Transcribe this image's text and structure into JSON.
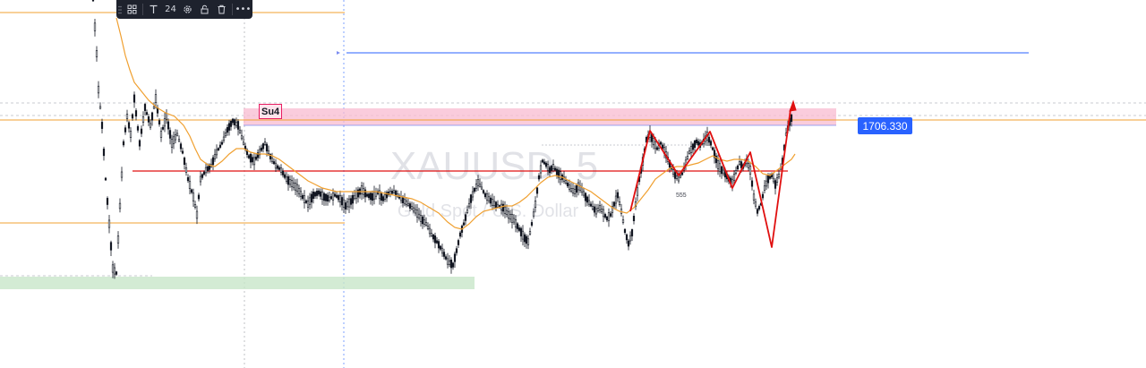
{
  "toolbar": {
    "items": [
      {
        "name": "templates-icon",
        "label": ""
      },
      {
        "name": "text-icon",
        "label": ""
      },
      {
        "name": "font-size",
        "label": "24"
      },
      {
        "name": "settings-icon",
        "label": ""
      },
      {
        "name": "lock-icon",
        "label": ""
      },
      {
        "name": "trash-icon",
        "label": ""
      },
      {
        "name": "more-icon",
        "label": "•••"
      }
    ]
  },
  "watermark": {
    "symbol": "XAUUSD, 5",
    "description": "Gold Spot / U.S. Dollar"
  },
  "price_label": "1706.330",
  "zone_label": "Su4",
  "small_label": "555",
  "colors": {
    "candle": "#131722",
    "ma": "#f0a030",
    "support_zone": "#c8e6c9",
    "resistance_zone": "#f8bbd0",
    "red_path": "#e01010",
    "blue_line": "#2962ff",
    "orange_level": "#f0a030",
    "price_label_bg": "#2962ff"
  },
  "chart_data": {
    "type": "candlestick",
    "symbol": "XAUUSD",
    "timeframe": "5",
    "last_price": 1706.33,
    "horizontal_lines": [
      {
        "name": "orange-level-top",
        "color": "#f0a030"
      },
      {
        "name": "orange-level-mid",
        "color": "#f0a030"
      },
      {
        "name": "orange-level-right",
        "color": "#f0a030"
      },
      {
        "name": "red-level",
        "color": "#e01010"
      },
      {
        "name": "blue-level",
        "color": "#2962ff"
      }
    ],
    "zones": [
      {
        "name": "resistance-zone",
        "label": "Su4",
        "color": "#f8bbd0"
      },
      {
        "name": "support-zone",
        "color": "#c8e6c9"
      }
    ]
  }
}
